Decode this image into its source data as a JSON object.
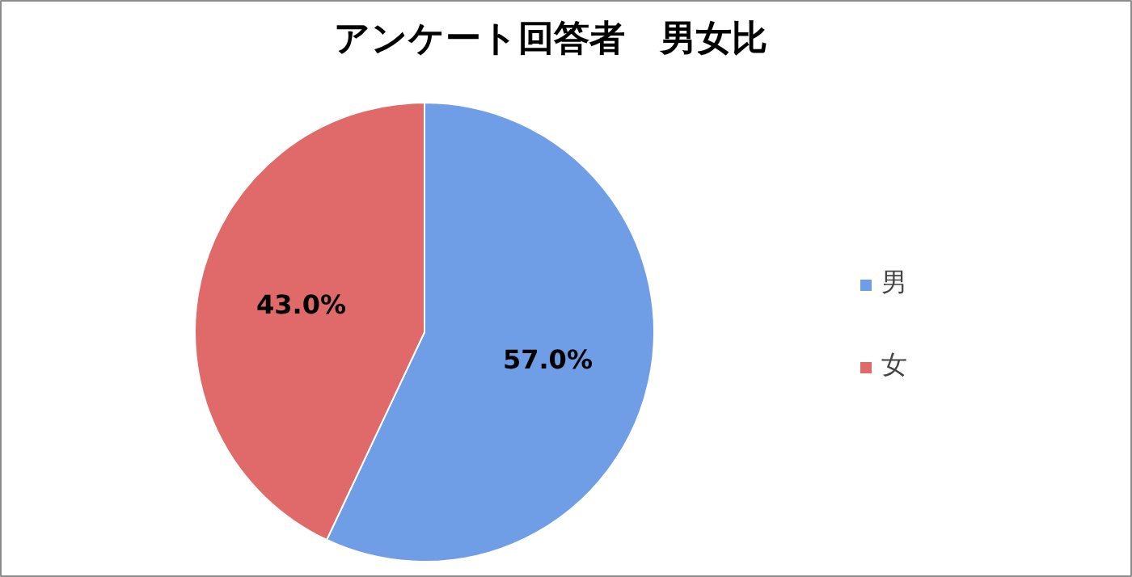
{
  "chart_data": {
    "type": "pie",
    "title": "アンケート回答者　男女比",
    "categories": [
      "男",
      "女"
    ],
    "values": [
      57.0,
      43.0
    ],
    "colors": [
      "#6f9de6",
      "#e06a6a"
    ],
    "value_labels": [
      "57.0%",
      "43.0%"
    ],
    "legend": "right"
  }
}
